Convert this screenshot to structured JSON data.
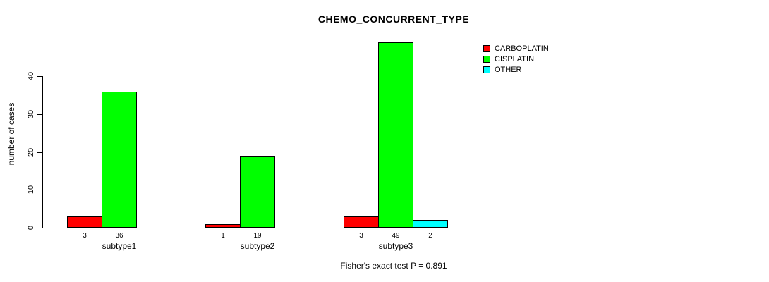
{
  "chart_data": {
    "type": "bar",
    "title": "CHEMO_CONCURRENT_TYPE",
    "xlabel": "",
    "ylabel": "number of cases",
    "categories": [
      "subtype1",
      "subtype2",
      "subtype3"
    ],
    "series": [
      {
        "name": "CARBOPLATIN",
        "color": "#FF0000",
        "values": [
          3,
          1,
          3
        ]
      },
      {
        "name": "CISPLATIN",
        "color": "#00FF00",
        "values": [
          36,
          19,
          49
        ]
      },
      {
        "name": "OTHER",
        "color": "#00FFFF",
        "values": [
          0,
          0,
          2
        ]
      }
    ],
    "bar_labels": [
      [
        "3",
        "36",
        ""
      ],
      [
        "1",
        "19",
        ""
      ],
      [
        "3",
        "49",
        "2"
      ]
    ],
    "yticks": [
      0,
      10,
      20,
      30,
      40
    ],
    "ylim": [
      0,
      50
    ],
    "grid": false,
    "legend_position": "top-right",
    "annotation": "Fisher's exact test P = 0.891",
    "axis_color": "#000000",
    "background_color": "#FFFFFF"
  }
}
